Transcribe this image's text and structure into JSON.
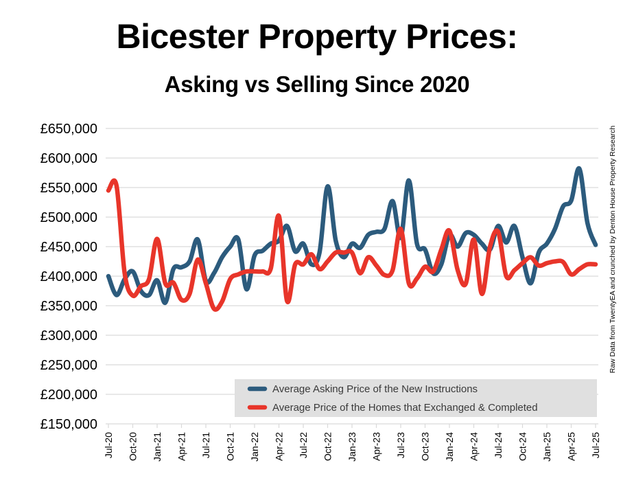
{
  "chart_data": {
    "type": "line",
    "title": "Bicester Property Prices:",
    "subtitle": "Asking vs Selling Since 2020",
    "source_note": "Raw Data from TwentyEA and crunched by Denton House Property Research",
    "xlabel": "",
    "ylabel": "",
    "ylim": [
      150000,
      650000
    ],
    "ytick_values": [
      150000,
      200000,
      250000,
      300000,
      350000,
      400000,
      450000,
      500000,
      550000,
      600000,
      650000
    ],
    "ytick_labels": [
      "£150,000",
      "£200,000",
      "£250,000",
      "£300,000",
      "£350,000",
      "£400,000",
      "£450,000",
      "£500,000",
      "£550,000",
      "£600,000",
      "£650,000"
    ],
    "grid": true,
    "legend_position": "bottom-right",
    "x": [
      "Jul-20",
      "Aug-20",
      "Sep-20",
      "Oct-20",
      "Nov-20",
      "Dec-20",
      "Jan-21",
      "Feb-21",
      "Mar-21",
      "Apr-21",
      "May-21",
      "Jun-21",
      "Jul-21",
      "Aug-21",
      "Sep-21",
      "Oct-21",
      "Nov-21",
      "Dec-21",
      "Jan-22",
      "Feb-22",
      "Mar-22",
      "Apr-22",
      "May-22",
      "Jun-22",
      "Jul-22",
      "Aug-22",
      "Sep-22",
      "Oct-22",
      "Nov-22",
      "Dec-22",
      "Jan-23",
      "Feb-23",
      "Mar-23",
      "Apr-23",
      "May-23",
      "Jun-23",
      "Jul-23",
      "Aug-23",
      "Sep-23",
      "Oct-23",
      "Nov-23",
      "Dec-23",
      "Jan-24",
      "Feb-24",
      "Mar-24",
      "Apr-24",
      "May-24",
      "Jun-24",
      "Jul-24",
      "Aug-24",
      "Sep-24",
      "Oct-24",
      "Nov-24",
      "Dec-24",
      "Jan-25",
      "Feb-25",
      "Mar-25",
      "Apr-25",
      "May-25",
      "Jun-25",
      "Jul-25"
    ],
    "xtick_labels": [
      "Jul-20",
      "Oct-20",
      "Jan-21",
      "Apr-21",
      "Jul-21",
      "Oct-21",
      "Jan-22",
      "Apr-22",
      "Jul-22",
      "Oct-22",
      "Jan-23",
      "Apr-23",
      "Jul-23",
      "Oct-23",
      "Jan-24",
      "Apr-24",
      "Jul-24",
      "Oct-24",
      "Jan-25",
      "Apr-25",
      "Jul-25"
    ],
    "series": [
      {
        "name": "Average Asking Price of the New Instructions",
        "color": "#2c5b7d",
        "values": [
          400000,
          368000,
          395000,
          408000,
          375000,
          368000,
          393000,
          355000,
          412000,
          415000,
          425000,
          462000,
          392000,
          405000,
          432000,
          450000,
          462000,
          378000,
          435000,
          443000,
          455000,
          460000,
          485000,
          442000,
          455000,
          420000,
          440000,
          552000,
          460000,
          432000,
          455000,
          448000,
          470000,
          475000,
          480000,
          527000,
          465000,
          562000,
          455000,
          445000,
          405000,
          420000,
          470000,
          450000,
          473000,
          470000,
          455000,
          445000,
          485000,
          457000,
          485000,
          432000,
          388000,
          440000,
          455000,
          480000,
          518000,
          528000,
          582000,
          490000,
          453000
        ]
      },
      {
        "name": "Average Price of the Homes that Exchanged & Completed",
        "color": "#e8352a",
        "values": [
          545000,
          553000,
          405000,
          367000,
          383000,
          395000,
          463000,
          388000,
          389000,
          360000,
          370000,
          428000,
          388000,
          345000,
          357000,
          395000,
          403000,
          408000,
          408000,
          408000,
          413000,
          502000,
          358000,
          420000,
          420000,
          437000,
          412000,
          425000,
          440000,
          440000,
          440000,
          405000,
          432000,
          418000,
          402000,
          410000,
          480000,
          388000,
          396000,
          416000,
          408000,
          445000,
          477000,
          411000,
          387000,
          462000,
          370000,
          450000,
          475000,
          400000,
          410000,
          422000,
          432000,
          418000,
          422000,
          425000,
          424000,
          403000,
          412000,
          420000,
          420000
        ]
      }
    ]
  }
}
